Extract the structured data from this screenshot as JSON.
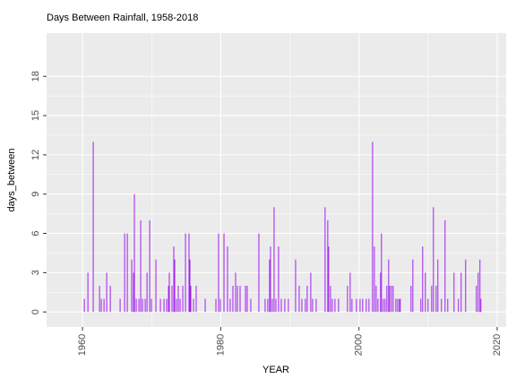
{
  "chart_data": {
    "type": "bar",
    "title": "Days Between Rainfall, 1958-2018",
    "x_label": "YEAR",
    "y_label": "days_between",
    "color": "#a020f0",
    "grid": true,
    "x": [
      1960.26,
      1960.78,
      1961.55,
      1962.46,
      1962.72,
      1963.11,
      1963.5,
      1964.02,
      1965.44,
      1966.09,
      1966.48,
      1967.12,
      1967.38,
      1967.51,
      1967.77,
      1968.16,
      1968.42,
      1968.68,
      1969.07,
      1969.33,
      1969.72,
      1969.97,
      1970.62,
      1971.27,
      1971.79,
      1972.18,
      1972.44,
      1972.56,
      1972.95,
      1973.21,
      1973.34,
      1973.6,
      1973.86,
      1974.12,
      1974.51,
      1974.9,
      1975.41,
      1975.54,
      1975.67,
      1976.06,
      1976.45,
      1977.75,
      1979.3,
      1979.69,
      1979.95,
      1980.47,
      1980.98,
      1981.37,
      1981.76,
      1982.15,
      1982.41,
      1982.8,
      1983.58,
      1983.83,
      1984.35,
      1985.52,
      1986.42,
      1986.81,
      1987.07,
      1987.2,
      1987.46,
      1987.72,
      1987.98,
      1988.37,
      1988.76,
      1989.27,
      1989.79,
      1990.83,
      1991.35,
      1991.74,
      1992.25,
      1992.51,
      1993.03,
      1993.29,
      1993.81,
      1995.1,
      1995.49,
      1995.62,
      1995.88,
      1996.14,
      1996.53,
      1997.05,
      1998.34,
      1998.73,
      1998.99,
      1999.64,
      2000.16,
      2000.54,
      2001.06,
      2001.45,
      2001.97,
      2002.23,
      2002.49,
      2002.75,
      2003.13,
      2003.26,
      2003.52,
      2003.78,
      2004.04,
      2004.3,
      2004.43,
      2004.69,
      2004.95,
      2005.34,
      2005.6,
      2005.85,
      2005.98,
      2007.54,
      2007.8,
      2008.96,
      2009.22,
      2009.61,
      2010.0,
      2010.52,
      2010.78,
      2011.17,
      2011.42,
      2011.94,
      2012.46,
      2012.85,
      2013.76,
      2014.4,
      2014.79,
      2015.44,
      2016.99,
      2017.25,
      2017.51,
      2017.64
    ],
    "values": [
      1,
      3,
      13,
      2,
      1,
      1,
      3,
      2,
      1,
      6,
      6,
      4,
      3,
      9,
      1,
      1,
      7,
      1,
      1,
      3,
      7,
      1,
      4,
      1,
      1,
      1,
      2,
      3,
      2,
      5,
      4,
      1,
      2,
      1,
      2,
      6,
      6,
      4,
      2,
      1,
      2,
      1,
      1,
      6,
      1,
      6,
      5,
      1,
      2,
      3,
      2,
      2,
      2,
      2,
      1,
      6,
      1,
      1,
      4,
      5,
      1,
      8,
      1,
      5,
      1,
      1,
      1,
      4,
      2,
      1,
      1,
      2,
      3,
      1,
      1,
      8,
      7,
      5,
      2,
      1,
      1,
      1,
      2,
      3,
      1,
      1,
      1,
      1,
      1,
      1,
      13,
      5,
      2,
      1,
      3,
      6,
      1,
      1,
      2,
      4,
      2,
      2,
      2,
      1,
      1,
      1,
      1,
      2,
      4,
      1,
      5,
      3,
      1,
      2,
      8,
      2,
      4,
      1,
      7,
      1,
      3,
      1,
      3,
      4,
      2,
      3,
      4,
      1
    ],
    "xlim": [
      1954.8,
      2021.3
    ],
    "xticks": [
      1960,
      1980,
      2000,
      2020
    ],
    "ylim": [
      -1.15,
      21.3
    ],
    "yticks": [
      0,
      3,
      6,
      9,
      12,
      15,
      18
    ]
  }
}
